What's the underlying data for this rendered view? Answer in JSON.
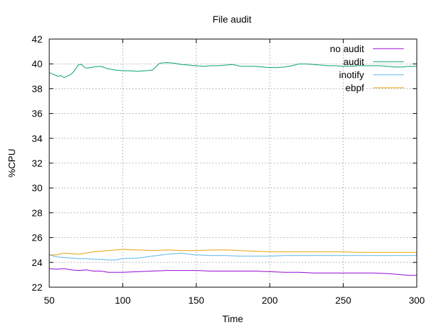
{
  "chart_data": {
    "type": "line",
    "title": "File audit",
    "xlabel": "Time",
    "ylabel": "%CPU",
    "xlim": [
      50,
      300
    ],
    "ylim": [
      22,
      42
    ],
    "xticks": [
      50,
      100,
      150,
      200,
      250,
      300
    ],
    "yticks": [
      22,
      24,
      26,
      28,
      30,
      32,
      34,
      36,
      38,
      40,
      42
    ],
    "grid": true,
    "legend_position": "top-right",
    "series": [
      {
        "name": "no audit",
        "color": "#9400d3",
        "x": [
          50,
          55,
          60,
          65,
          70,
          75,
          80,
          85,
          90,
          95,
          100,
          110,
          120,
          130,
          140,
          150,
          160,
          170,
          180,
          190,
          200,
          210,
          220,
          230,
          240,
          250,
          260,
          270,
          280,
          285,
          290,
          295,
          300
        ],
        "y": [
          23.5,
          23.45,
          23.5,
          23.4,
          23.35,
          23.4,
          23.3,
          23.3,
          23.2,
          23.2,
          23.2,
          23.25,
          23.3,
          23.35,
          23.35,
          23.35,
          23.3,
          23.3,
          23.3,
          23.3,
          23.25,
          23.2,
          23.2,
          23.15,
          23.15,
          23.15,
          23.15,
          23.15,
          23.1,
          23.05,
          23.0,
          22.95,
          22.95
        ]
      },
      {
        "name": "audit",
        "color": "#009e73",
        "x": [
          50,
          52,
          54,
          56,
          58,
          60,
          62,
          64,
          66,
          68,
          70,
          72,
          74,
          76,
          78,
          80,
          85,
          90,
          95,
          100,
          105,
          110,
          115,
          120,
          122,
          125,
          130,
          135,
          140,
          145,
          150,
          155,
          160,
          165,
          170,
          175,
          180,
          185,
          190,
          195,
          200,
          205,
          210,
          215,
          220,
          225,
          230,
          235,
          240,
          245,
          250,
          255,
          260,
          265,
          270,
          275,
          280,
          285,
          290,
          295,
          300
        ],
        "y": [
          39.3,
          39.2,
          39.1,
          39.0,
          39.05,
          38.9,
          39.0,
          39.1,
          39.3,
          39.6,
          39.95,
          39.95,
          39.7,
          39.65,
          39.7,
          39.75,
          39.8,
          39.6,
          39.5,
          39.45,
          39.45,
          39.4,
          39.45,
          39.5,
          39.7,
          40.05,
          40.1,
          40.05,
          39.95,
          39.9,
          39.85,
          39.8,
          39.85,
          39.85,
          39.9,
          39.95,
          39.8,
          39.8,
          39.8,
          39.75,
          39.7,
          39.7,
          39.75,
          39.85,
          40.0,
          40.0,
          39.95,
          39.9,
          39.85,
          39.85,
          39.8,
          39.8,
          39.85,
          39.85,
          39.85,
          39.85,
          39.8,
          39.75,
          39.75,
          39.8,
          39.8
        ]
      },
      {
        "name": "inotify",
        "color": "#56b4e9",
        "x": [
          50,
          55,
          60,
          65,
          70,
          75,
          80,
          85,
          90,
          95,
          100,
          110,
          120,
          130,
          135,
          140,
          145,
          150,
          160,
          170,
          180,
          190,
          200,
          210,
          220,
          230,
          240,
          250,
          260,
          270,
          280,
          290,
          300
        ],
        "y": [
          24.6,
          24.45,
          24.4,
          24.35,
          24.3,
          24.3,
          24.25,
          24.25,
          24.2,
          24.2,
          24.3,
          24.35,
          24.5,
          24.65,
          24.7,
          24.75,
          24.65,
          24.6,
          24.55,
          24.55,
          24.5,
          24.5,
          24.5,
          24.55,
          24.55,
          24.55,
          24.55,
          24.55,
          24.55,
          24.55,
          24.55,
          24.55,
          24.55
        ]
      },
      {
        "name": "ebpf",
        "color": "#e69f00",
        "x": [
          50,
          55,
          60,
          65,
          70,
          75,
          80,
          85,
          90,
          95,
          100,
          110,
          120,
          130,
          140,
          150,
          160,
          170,
          180,
          190,
          200,
          210,
          220,
          230,
          240,
          250,
          260,
          270,
          280,
          290,
          300
        ],
        "y": [
          24.6,
          24.6,
          24.75,
          24.7,
          24.65,
          24.75,
          24.85,
          24.9,
          24.95,
          25.0,
          25.05,
          25.0,
          24.95,
          25.0,
          24.95,
          24.95,
          25.0,
          25.0,
          24.95,
          24.9,
          24.85,
          24.85,
          24.85,
          24.85,
          24.85,
          24.85,
          24.8,
          24.8,
          24.8,
          24.8,
          24.8
        ]
      }
    ]
  }
}
